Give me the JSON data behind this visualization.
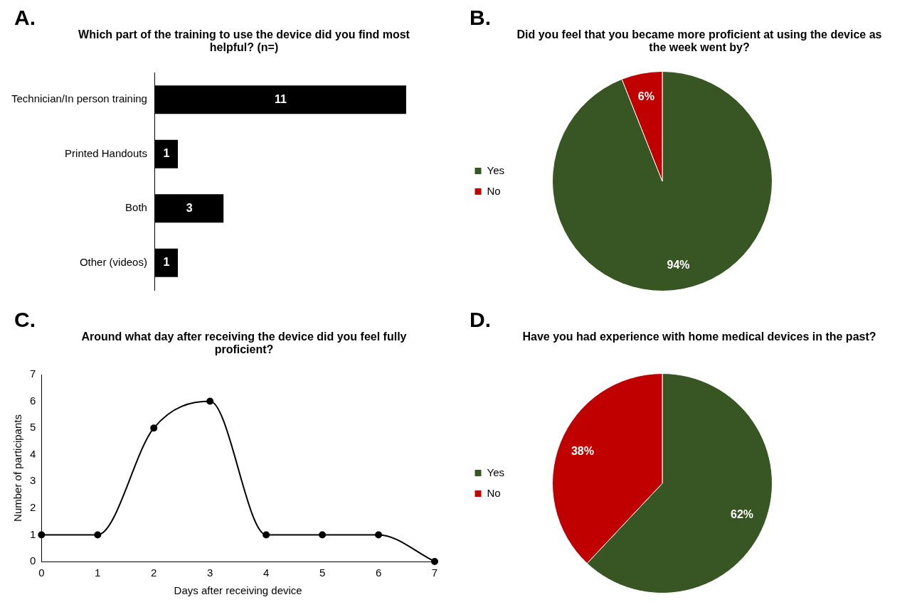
{
  "chart_data": [
    {
      "type": "bar",
      "orientation": "horizontal",
      "title": "Which part of the training to use the device did you find most helpful? (n=)",
      "annotations": [
        "A."
      ],
      "categories": [
        "Technician/In person training",
        "Printed Handouts",
        "Both",
        "Other (videos)"
      ],
      "values": [
        11,
        1,
        3,
        1
      ],
      "color": "#000000",
      "data_labels": true
    },
    {
      "type": "pie",
      "title": "Did you feel that you became more proficient at using the device as the week went by?",
      "annotations": [
        "B."
      ],
      "categories": [
        "Yes",
        "No"
      ],
      "values": [
        94,
        6
      ],
      "colors": [
        "#375623",
        "#c00000"
      ],
      "value_labels": [
        "94%",
        "6%"
      ],
      "legend": "left"
    },
    {
      "type": "line",
      "title": "Around what day after receiving the device did you feel fully proficient?",
      "annotations": [
        "C."
      ],
      "x": [
        0,
        1,
        2,
        3,
        4,
        5,
        6,
        7
      ],
      "values": [
        1,
        1,
        5,
        6,
        1,
        1,
        1,
        0
      ],
      "color": "#000000",
      "xlim": [
        0,
        7
      ],
      "xticks": [
        0,
        1,
        2,
        3,
        4,
        5,
        6,
        7
      ],
      "ylim": [
        0,
        7
      ],
      "yticks": [
        0,
        1,
        2,
        3,
        4,
        5,
        6,
        7
      ],
      "xlabel": "Days after receiving device",
      "ylabel": "Number of participants",
      "marker": "circle",
      "line_style": "solid"
    },
    {
      "type": "pie",
      "title": "Have you had experience with home medical devices in the past?",
      "annotations": [
        "D."
      ],
      "categories": [
        "Yes",
        "No"
      ],
      "values": [
        62,
        38
      ],
      "colors": [
        "#375623",
        "#c00000"
      ],
      "value_labels": [
        "62%",
        "38%"
      ],
      "legend": "left"
    }
  ]
}
